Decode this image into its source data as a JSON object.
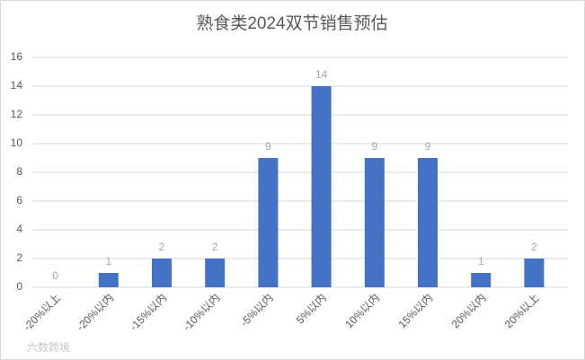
{
  "chart_data": {
    "type": "bar",
    "title": "熟食类2024双节销售预估",
    "categories": [
      "-20%以上",
      "-20%以内",
      "-15%以内",
      "-10%以内",
      "-5%以内",
      "5%以内",
      "10%以内",
      "15%以内",
      "20%以内",
      "20%以上"
    ],
    "values": [
      0,
      1,
      2,
      2,
      9,
      14,
      9,
      9,
      1,
      2
    ],
    "color": "#4472c4",
    "ylim": [
      0,
      16
    ],
    "yticks": [
      0,
      2,
      4,
      6,
      8,
      10,
      12,
      14,
      16
    ],
    "grid": true,
    "watermark": "六数跨境"
  }
}
